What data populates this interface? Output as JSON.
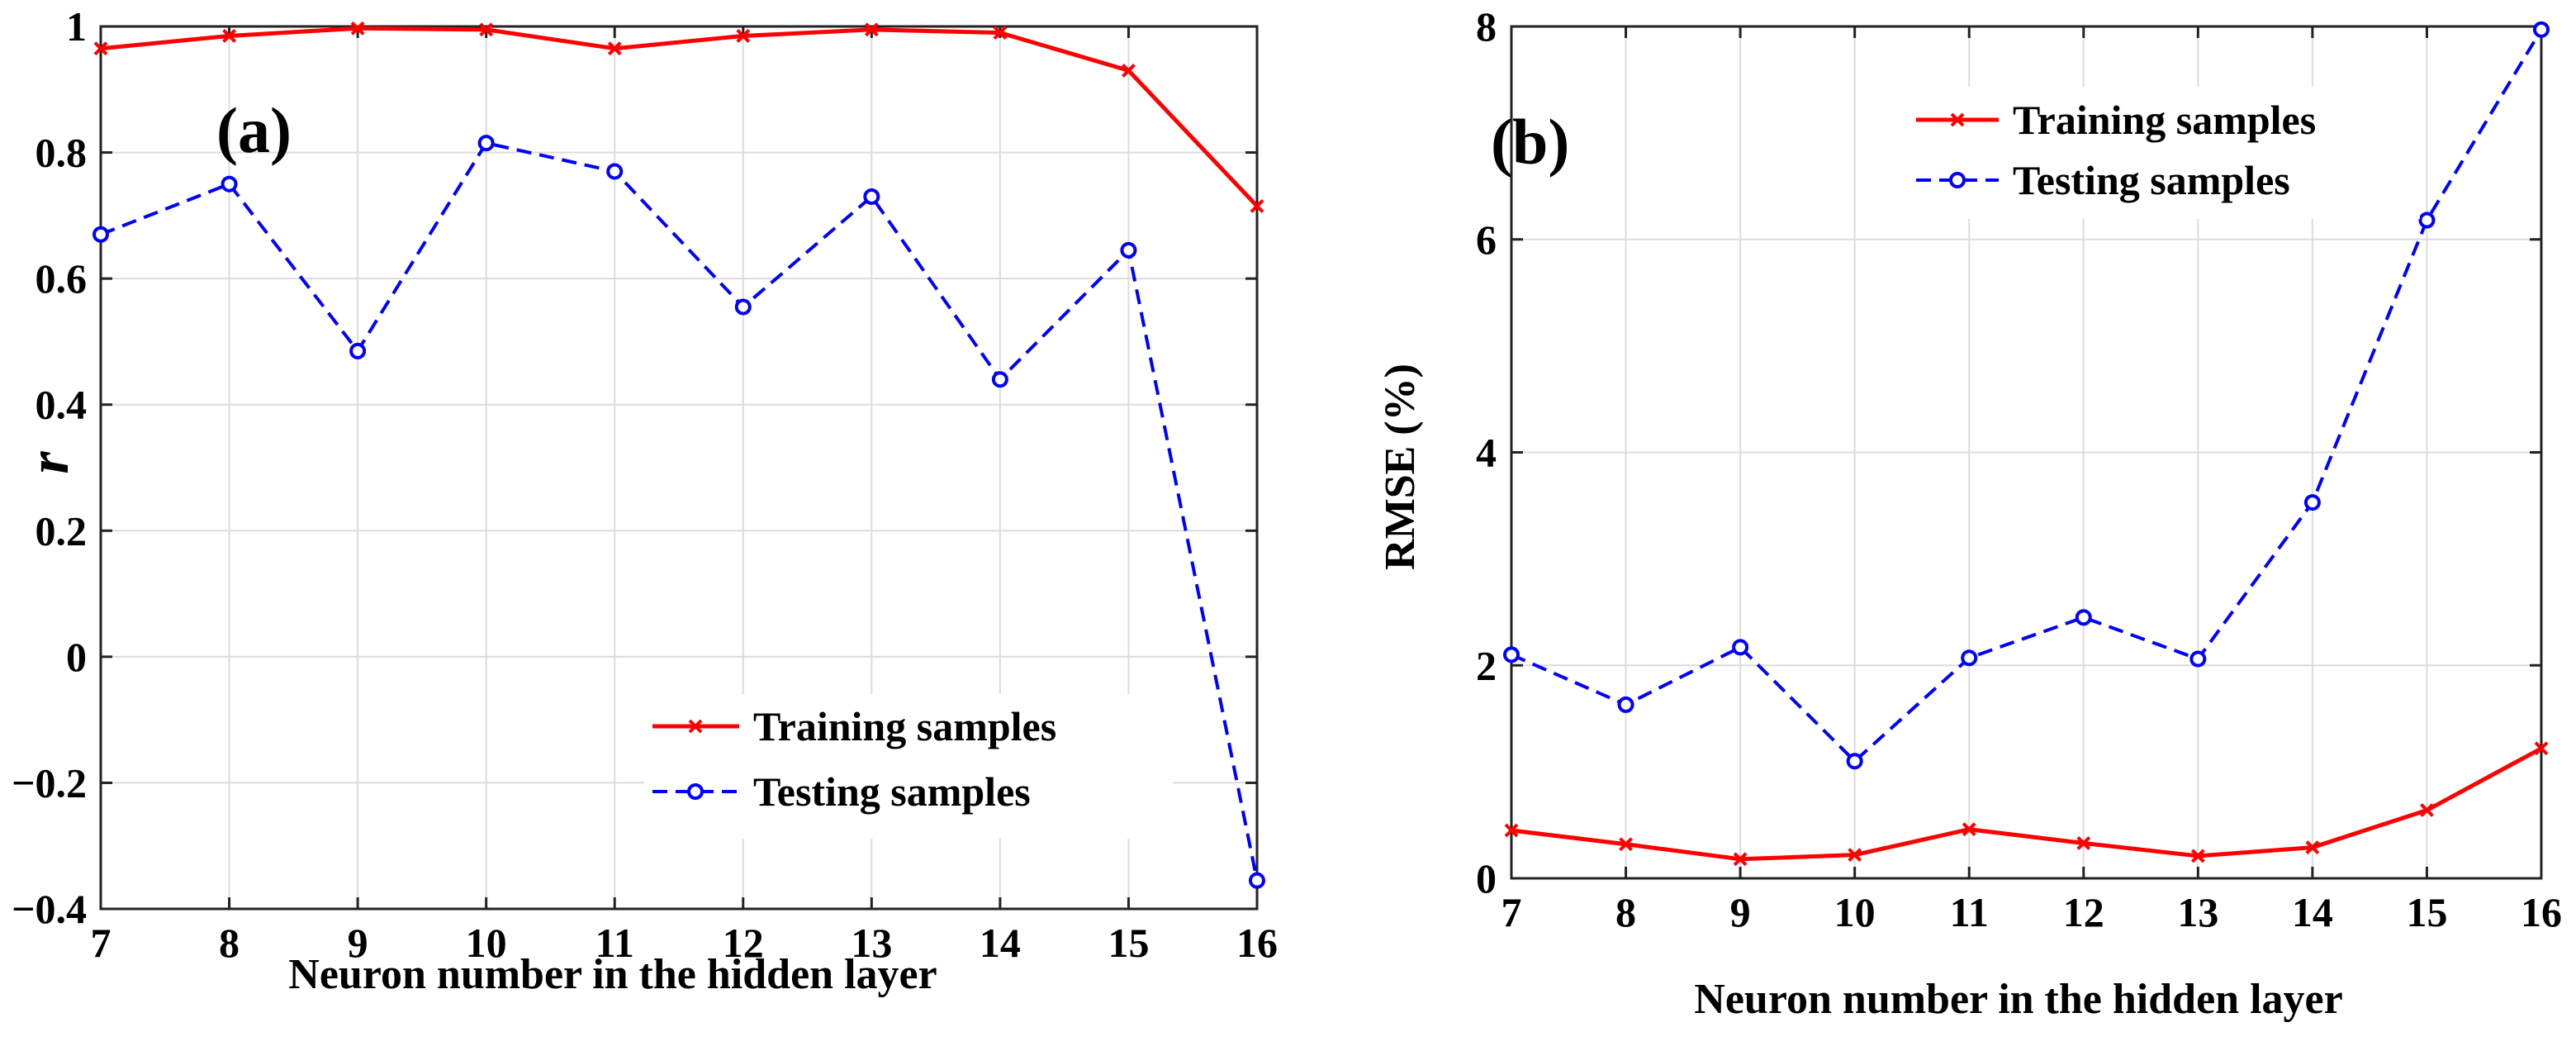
{
  "chart_data": [
    {
      "type": "line",
      "panel_label": "(a)",
      "xlabel": "Neuron number in the hidden layer",
      "ylabel": "r",
      "x": [
        7,
        8,
        9,
        10,
        11,
        12,
        13,
        14,
        15,
        16
      ],
      "xlim": [
        7,
        16
      ],
      "ylim": [
        -0.4,
        1
      ],
      "xticks": [
        7,
        8,
        9,
        10,
        11,
        12,
        13,
        14,
        15,
        16
      ],
      "xtick_labels": [
        "7",
        "8",
        "9",
        "10",
        "11",
        "12",
        "13",
        "14",
        "15",
        "16"
      ],
      "yticks": [
        -0.4,
        -0.2,
        0,
        0.2,
        0.4,
        0.6,
        0.8,
        1
      ],
      "ytick_labels": [
        "−0.4",
        "−0.2",
        "0",
        "0.2",
        "0.4",
        "0.6",
        "0.8",
        "1"
      ],
      "grid": true,
      "legend_position": "bottom-right",
      "series": [
        {
          "name": "Training samples",
          "color": "#ff0000",
          "line_style": "solid",
          "marker": "x",
          "values": [
            0.965,
            0.985,
            0.997,
            0.995,
            0.965,
            0.985,
            0.995,
            0.99,
            0.93,
            0.715
          ]
        },
        {
          "name": "Testing samples",
          "color": "#0000ff",
          "line_style": "dashed",
          "marker": "circle",
          "values": [
            0.67,
            0.75,
            0.485,
            0.815,
            0.77,
            0.555,
            0.73,
            0.44,
            0.645,
            -0.355
          ]
        }
      ]
    },
    {
      "type": "line",
      "panel_label": "(b)",
      "xlabel": "Neuron number in the hidden layer",
      "ylabel": "RMSE (%)",
      "x": [
        7,
        8,
        9,
        10,
        11,
        12,
        13,
        14,
        15,
        16
      ],
      "xlim": [
        7,
        16
      ],
      "ylim": [
        0,
        8
      ],
      "xticks": [
        7,
        8,
        9,
        10,
        11,
        12,
        13,
        14,
        15,
        16
      ],
      "xtick_labels": [
        "7",
        "8",
        "9",
        "10",
        "11",
        "12",
        "13",
        "14",
        "15",
        "16"
      ],
      "yticks": [
        0,
        2,
        4,
        6,
        8
      ],
      "ytick_labels": [
        "0",
        "2",
        "4",
        "6",
        "8"
      ],
      "grid": true,
      "legend_position": "top-right",
      "series": [
        {
          "name": "Training samples",
          "color": "#ff0000",
          "line_style": "solid",
          "marker": "x",
          "values": [
            0.45,
            0.32,
            0.18,
            0.22,
            0.46,
            0.33,
            0.21,
            0.29,
            0.64,
            1.22
          ]
        },
        {
          "name": "Testing samples",
          "color": "#0000ff",
          "line_style": "dashed",
          "marker": "circle",
          "values": [
            2.1,
            1.63,
            2.17,
            1.1,
            2.07,
            2.45,
            2.06,
            3.53,
            6.18,
            7.97
          ]
        }
      ]
    }
  ]
}
